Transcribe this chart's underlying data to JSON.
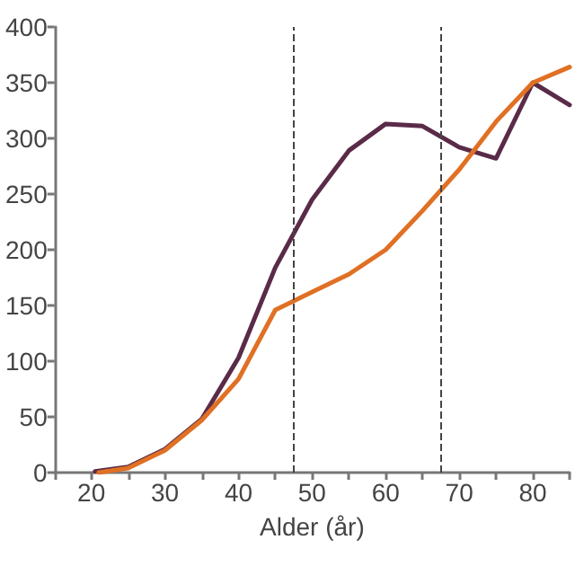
{
  "chart_data": {
    "type": "line",
    "xlabel": "Alder (år)",
    "xlim": [
      15,
      85
    ],
    "xticks": [
      {
        "value": 15,
        "label": null
      },
      20,
      {
        "value": 25,
        "label": null
      },
      30,
      {
        "value": 35,
        "label": null
      },
      40,
      {
        "value": 45,
        "label": null
      },
      50,
      {
        "value": 55,
        "label": null
      },
      60,
      {
        "value": 65,
        "label": null
      },
      70,
      {
        "value": 75,
        "label": null
      },
      80,
      {
        "value": 85,
        "label": null
      }
    ],
    "ylim": [
      0,
      400
    ],
    "yticks": [
      0,
      50,
      100,
      150,
      200,
      250,
      300,
      350,
      400
    ],
    "grid": false,
    "marker": "none",
    "line_style": "solid",
    "series": [
      {
        "color": "#5a2b48",
        "x": [
          20.5,
          25,
          30,
          35,
          40,
          45,
          50,
          55,
          60,
          65,
          70,
          75,
          80,
          85
        ],
        "values": [
          1,
          5,
          21,
          48,
          103,
          184,
          245,
          289,
          313,
          311,
          292,
          282,
          350,
          330
        ]
      },
      {
        "color": "#e07024",
        "x": [
          21,
          25,
          30,
          35,
          40,
          45,
          50,
          55,
          60,
          65,
          70,
          75,
          80,
          85
        ],
        "values": [
          0,
          4,
          20,
          47,
          84,
          146,
          162,
          178,
          200,
          235,
          272,
          315,
          350,
          364
        ]
      }
    ],
    "ref_lines": [
      {
        "axis": "x",
        "value": 47.5,
        "color": "#444444",
        "line_style": "dashed"
      },
      {
        "axis": "x",
        "value": 67.5,
        "color": "#444444",
        "line_style": "dashed"
      }
    ]
  }
}
